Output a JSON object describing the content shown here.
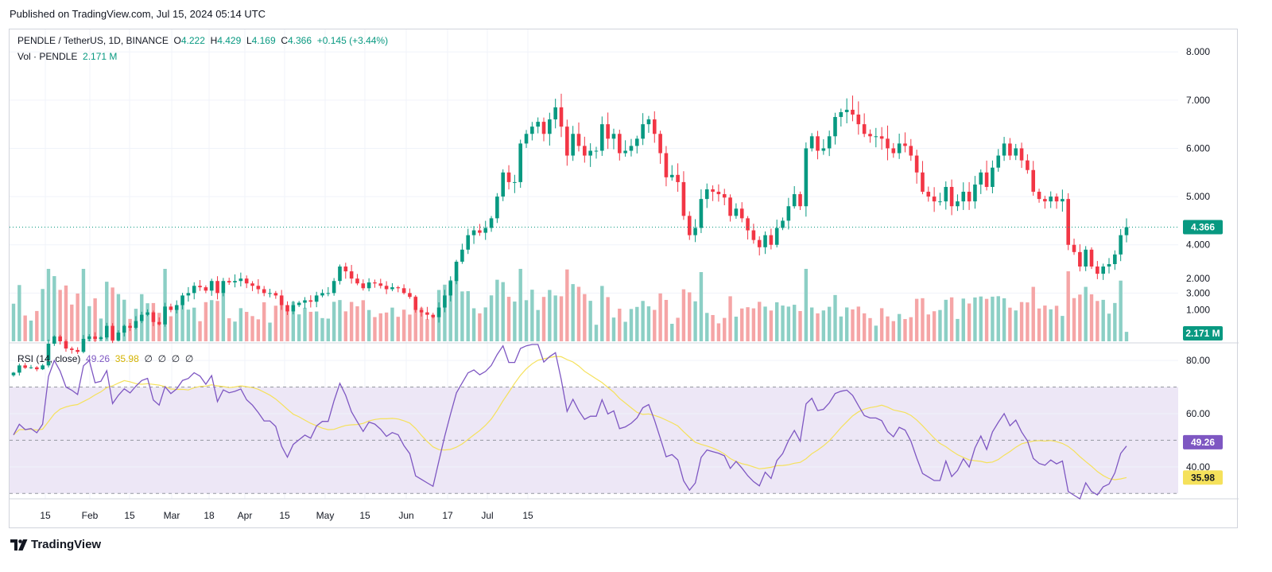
{
  "published": "Published on TradingView.com, Jul 15, 2024 05:14 UTC",
  "brand": "TradingView",
  "legend": {
    "symbol": "PENDLE / TetherUS, 1D, BINANCE",
    "o_label": "O",
    "o": "4.222",
    "h_label": "H",
    "h": "4.429",
    "l_label": "L",
    "l": "4.169",
    "c_label": "C",
    "c": "4.366",
    "change": "+0.145 (+3.44%)",
    "vol_label": "Vol · PENDLE",
    "vol": "2.171 M",
    "rsi_label": "RSI (14, close)",
    "rsi": "49.26",
    "rsi_ma": "35.98",
    "rsi_extra": [
      "∅",
      "∅",
      "∅",
      "∅"
    ]
  },
  "colors": {
    "up": "#089981",
    "down": "#f23645",
    "vol_up": "#8ccfc5",
    "vol_down": "#f5a5a6",
    "rsi": "#7e57c2",
    "rsi_ma": "#f5e15b",
    "rsi_band": "#ede7f6"
  },
  "chart_data": [
    {
      "type": "candlestick",
      "name": "PENDLE / TetherUS",
      "y_ticks": [
        "3.000",
        "4.000",
        "5.000",
        "6.000",
        "7.000",
        "8.000"
      ],
      "ylim": [
        2.0,
        8.3
      ],
      "x_ticks": [
        "15",
        "Feb",
        "15",
        "Mar",
        "18",
        "Apr",
        "15",
        "May",
        "15",
        "Jun",
        "17",
        "Jul",
        "15"
      ],
      "last_price_label": "4.366",
      "closes": [
        1.35,
        1.5,
        1.45,
        1.46,
        1.42,
        1.5,
        1.95,
        2.1,
        2.0,
        1.85,
        1.82,
        1.78,
        2.05,
        2.1,
        2.05,
        2.08,
        2.32,
        2.02,
        2.18,
        2.32,
        2.28,
        2.42,
        2.55,
        2.6,
        2.4,
        2.35,
        2.72,
        2.65,
        2.75,
        2.95,
        3.0,
        3.15,
        3.12,
        3.05,
        3.25,
        3.0,
        3.25,
        3.22,
        3.25,
        3.3,
        3.2,
        3.15,
        3.08,
        3.0,
        3.0,
        2.95,
        2.75,
        2.62,
        2.75,
        2.8,
        2.85,
        2.82,
        2.95,
        3.0,
        3.0,
        3.25,
        3.55,
        3.45,
        3.3,
        3.2,
        3.1,
        3.22,
        3.2,
        3.15,
        3.08,
        3.12,
        3.1,
        3.0,
        2.92,
        2.65,
        2.6,
        2.55,
        2.5,
        2.7,
        2.95,
        3.25,
        3.65,
        3.9,
        4.2,
        4.3,
        4.25,
        4.35,
        4.55,
        5.0,
        5.5,
        5.3,
        5.3,
        6.1,
        6.3,
        6.45,
        6.55,
        6.3,
        6.6,
        6.85,
        6.45,
        5.85,
        6.3,
        6.05,
        5.85,
        5.95,
        5.95,
        6.5,
        6.2,
        6.3,
        5.9,
        5.95,
        6.05,
        6.2,
        6.5,
        6.6,
        6.3,
        5.9,
        5.4,
        5.45,
        5.3,
        4.6,
        4.2,
        4.35,
        4.95,
        5.15,
        5.1,
        5.05,
        4.98,
        4.6,
        4.75,
        4.55,
        4.3,
        4.1,
        3.95,
        4.2,
        4.0,
        4.35,
        4.5,
        4.8,
        5.05,
        4.8,
        6.0,
        6.25,
        5.95,
        6.0,
        6.25,
        6.65,
        6.75,
        6.8,
        6.7,
        6.5,
        6.3,
        6.25,
        6.25,
        6.2,
        6.0,
        5.9,
        6.1,
        6.05,
        5.85,
        5.5,
        5.1,
        5.0,
        4.9,
        4.9,
        5.2,
        4.8,
        4.9,
        5.1,
        4.9,
        5.25,
        5.5,
        5.2,
        5.6,
        5.85,
        6.1,
        5.85,
        6.0,
        5.75,
        5.55,
        5.1,
        4.95,
        4.9,
        5.0,
        4.9,
        4.95,
        4.0,
        3.85,
        3.55,
        3.9,
        3.55,
        3.4,
        3.55,
        3.6,
        3.8,
        4.2,
        4.366
      ],
      "volume_ticks": [
        "1.000",
        "2.000"
      ],
      "volume_last_label": "2.171 M"
    },
    {
      "type": "line",
      "name": "RSI (14, close)",
      "y_ticks": [
        "40.00",
        "60.00",
        "80.00"
      ],
      "ylim": [
        28,
        86
      ],
      "bands": [
        70,
        50,
        30
      ],
      "last_labels": [
        "49.26",
        "35.98"
      ]
    }
  ]
}
